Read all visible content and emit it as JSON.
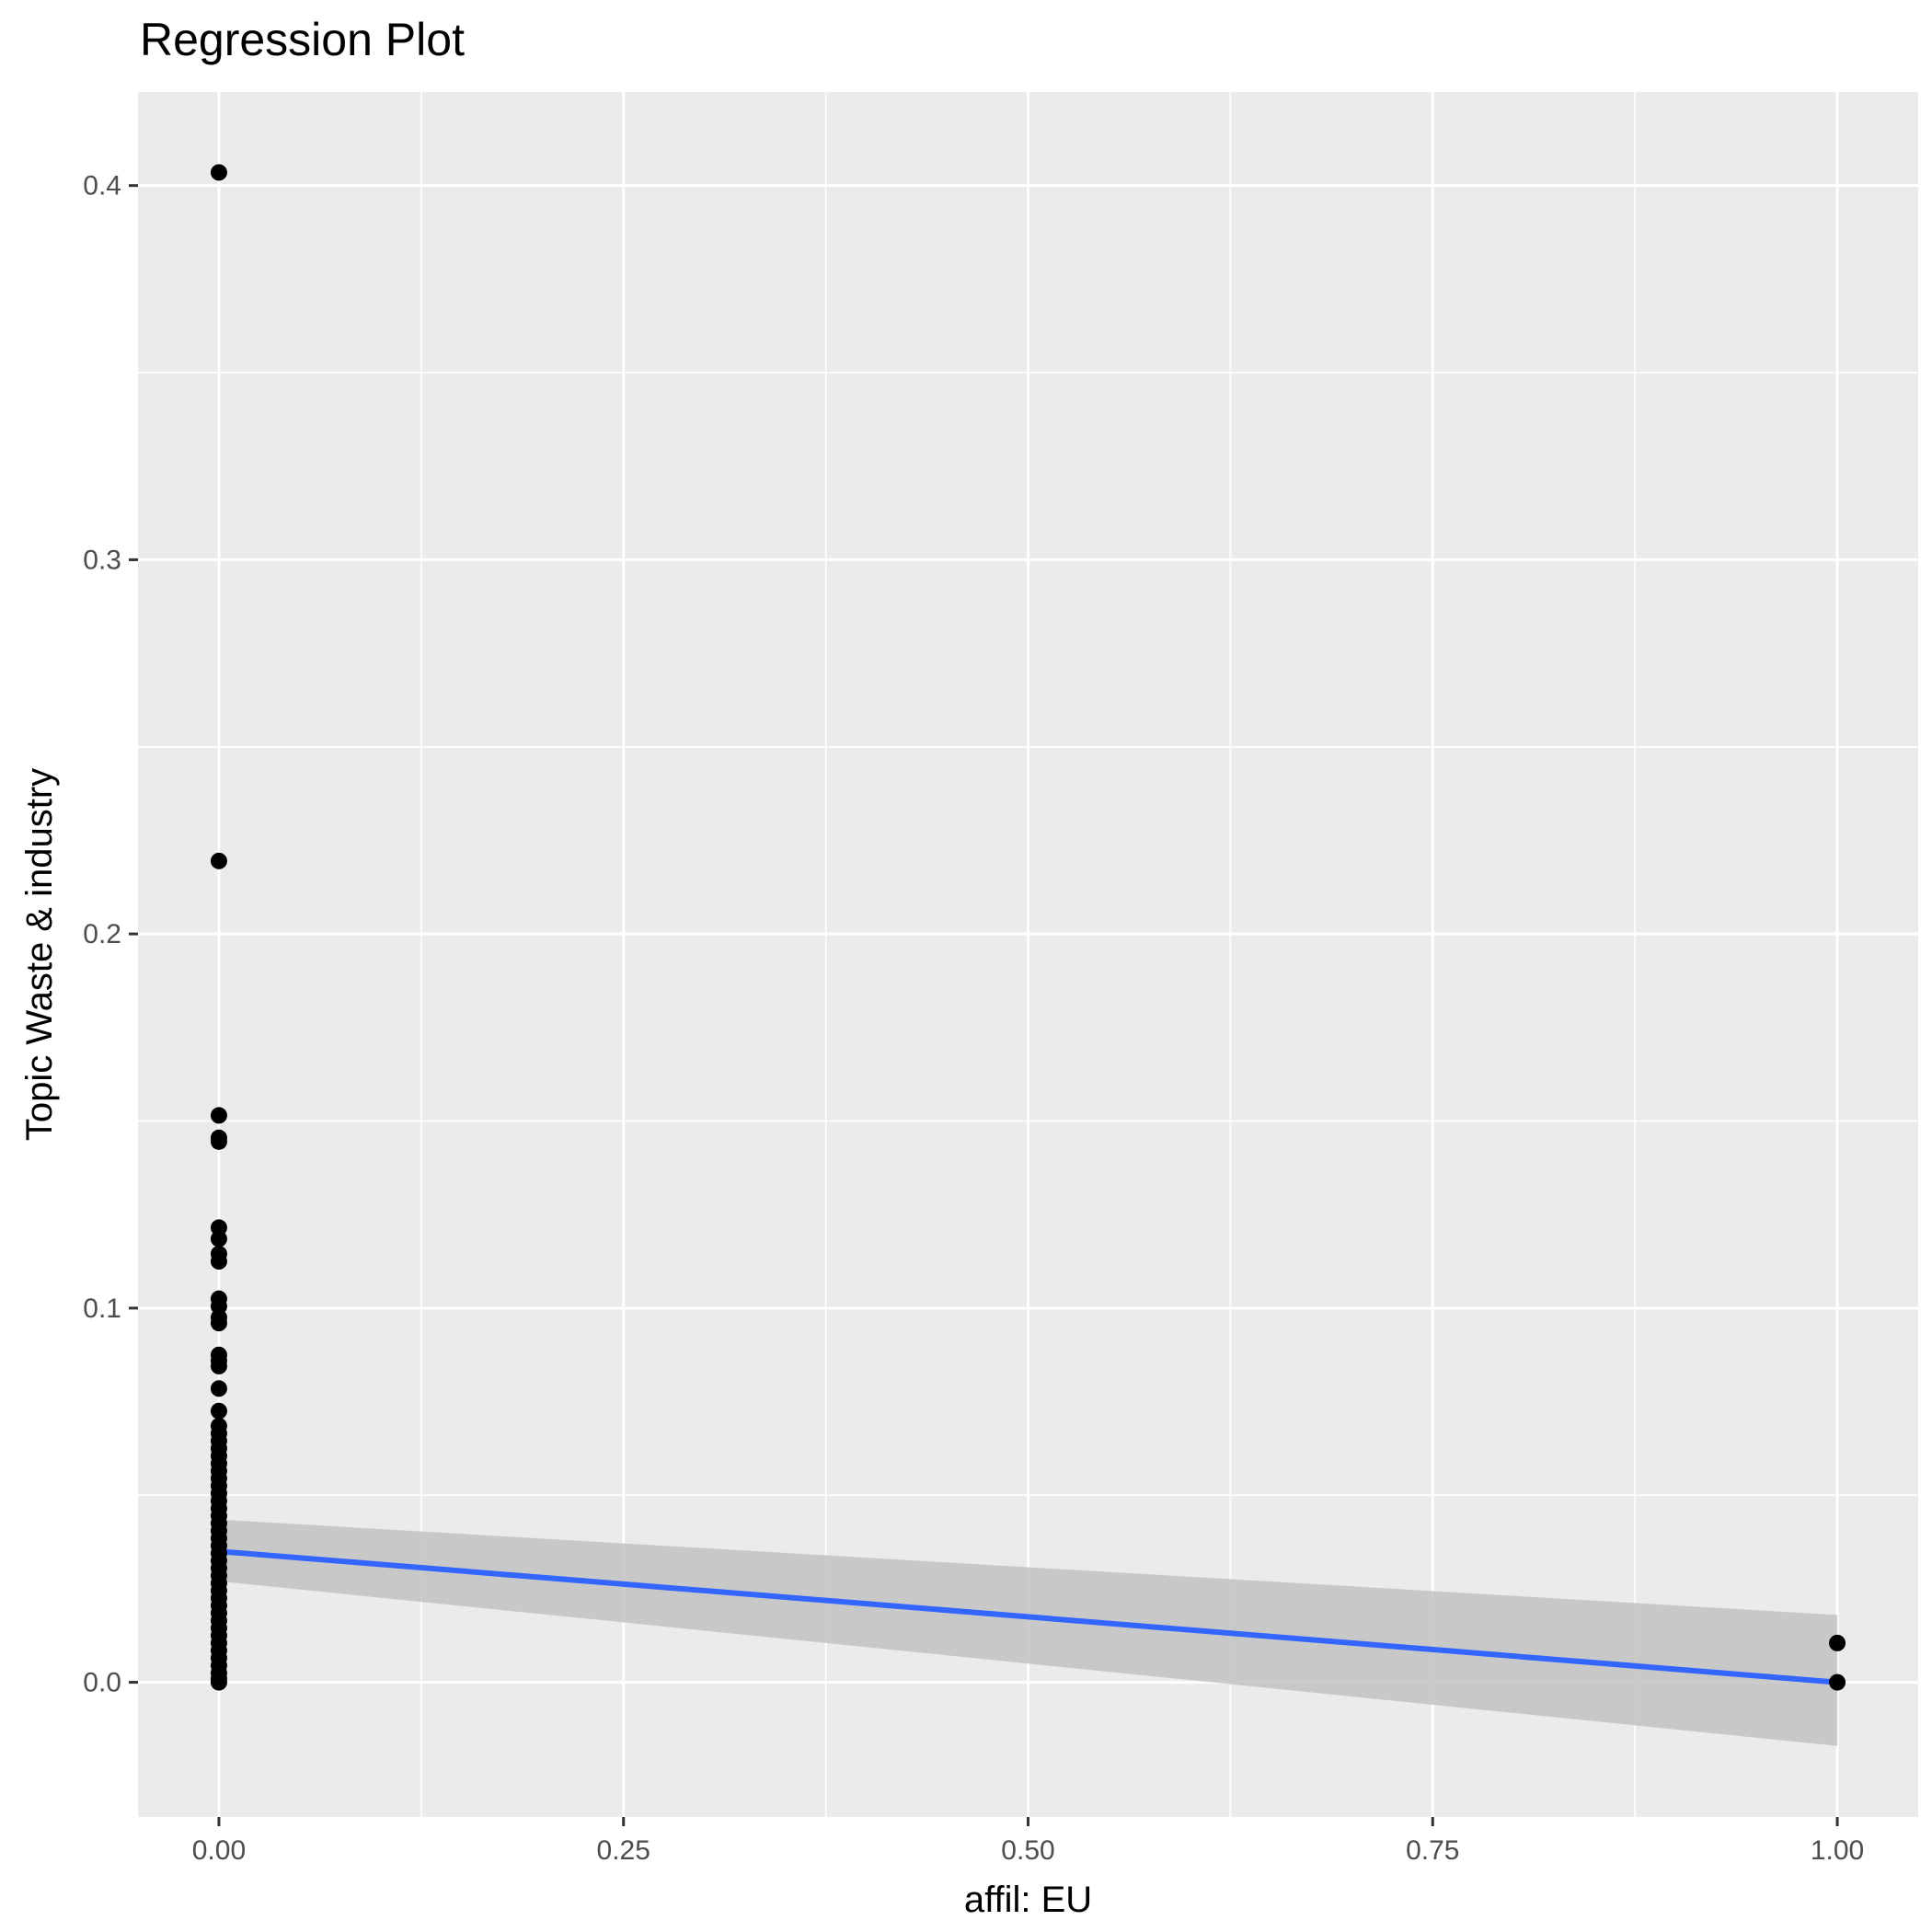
{
  "chart_data": {
    "type": "scatter",
    "title": "Regression Plot",
    "xlabel": "affil: EU",
    "ylabel": "Topic Waste & industry",
    "xlim": [
      -0.05,
      1.05
    ],
    "ylim": [
      -0.036,
      0.425
    ],
    "x_ticks": [
      0.0,
      0.25,
      0.5,
      0.75,
      1.0
    ],
    "x_tick_labels": [
      "0.00",
      "0.25",
      "0.50",
      "0.75",
      "1.00"
    ],
    "y_ticks": [
      0.0,
      0.1,
      0.2,
      0.3,
      0.4
    ],
    "y_tick_labels": [
      "0.0",
      "0.1",
      "0.2",
      "0.3",
      "0.4"
    ],
    "grid": true,
    "points": [
      {
        "x": 0,
        "y": 0.4035
      },
      {
        "x": 0,
        "y": 0.2195
      },
      {
        "x": 0,
        "y": 0.1515
      },
      {
        "x": 0,
        "y": 0.1455
      },
      {
        "x": 0,
        "y": 0.1445
      },
      {
        "x": 0,
        "y": 0.1215
      },
      {
        "x": 0,
        "y": 0.1185
      },
      {
        "x": 0,
        "y": 0.1145
      },
      {
        "x": 0,
        "y": 0.1125
      },
      {
        "x": 0,
        "y": 0.1025
      },
      {
        "x": 0,
        "y": 0.1005
      },
      {
        "x": 0,
        "y": 0.0975
      },
      {
        "x": 0,
        "y": 0.096
      },
      {
        "x": 0,
        "y": 0.0875
      },
      {
        "x": 0,
        "y": 0.086
      },
      {
        "x": 0,
        "y": 0.0845
      },
      {
        "x": 0,
        "y": 0.0785
      },
      {
        "x": 0,
        "y": 0.0725
      },
      {
        "x": 0,
        "y": 0.0685
      },
      {
        "x": 0,
        "y": 0.0665
      },
      {
        "x": 0,
        "y": 0.0645
      },
      {
        "x": 0,
        "y": 0.0625
      },
      {
        "x": 0,
        "y": 0.0605
      },
      {
        "x": 0,
        "y": 0.0585
      },
      {
        "x": 0,
        "y": 0.0565
      },
      {
        "x": 0,
        "y": 0.0545
      },
      {
        "x": 0,
        "y": 0.0525
      },
      {
        "x": 0,
        "y": 0.0505
      },
      {
        "x": 0,
        "y": 0.0485
      },
      {
        "x": 0,
        "y": 0.0465
      },
      {
        "x": 0,
        "y": 0.0445
      },
      {
        "x": 0,
        "y": 0.0425
      },
      {
        "x": 0,
        "y": 0.0405
      },
      {
        "x": 0,
        "y": 0.0385
      },
      {
        "x": 0,
        "y": 0.0365
      },
      {
        "x": 0,
        "y": 0.0345
      },
      {
        "x": 0,
        "y": 0.0325
      },
      {
        "x": 0,
        "y": 0.0305
      },
      {
        "x": 0,
        "y": 0.0285
      },
      {
        "x": 0,
        "y": 0.0265
      },
      {
        "x": 0,
        "y": 0.0245
      },
      {
        "x": 0,
        "y": 0.0225
      },
      {
        "x": 0,
        "y": 0.0205
      },
      {
        "x": 0,
        "y": 0.0185
      },
      {
        "x": 0,
        "y": 0.0165
      },
      {
        "x": 0,
        "y": 0.0145
      },
      {
        "x": 0,
        "y": 0.0125
      },
      {
        "x": 0,
        "y": 0.0105
      },
      {
        "x": 0,
        "y": 0.0085
      },
      {
        "x": 0,
        "y": 0.0065
      },
      {
        "x": 0,
        "y": 0.0045
      },
      {
        "x": 0,
        "y": 0.0025
      },
      {
        "x": 0,
        "y": 0.001
      },
      {
        "x": 0,
        "y": 0.0
      },
      {
        "x": 1,
        "y": 0.0105
      },
      {
        "x": 1,
        "y": 0.0
      }
    ],
    "regression": {
      "x": [
        0,
        1
      ],
      "y": [
        0.035,
        0.0
      ],
      "ci_lower": [
        0.027,
        -0.017
      ],
      "ci_upper": [
        0.0435,
        0.018
      ]
    },
    "colors": {
      "panel": "#ebebeb",
      "grid": "#ffffff",
      "point": "#000000",
      "line": "#3366ff",
      "ribbon": "#c2c2c2"
    }
  }
}
